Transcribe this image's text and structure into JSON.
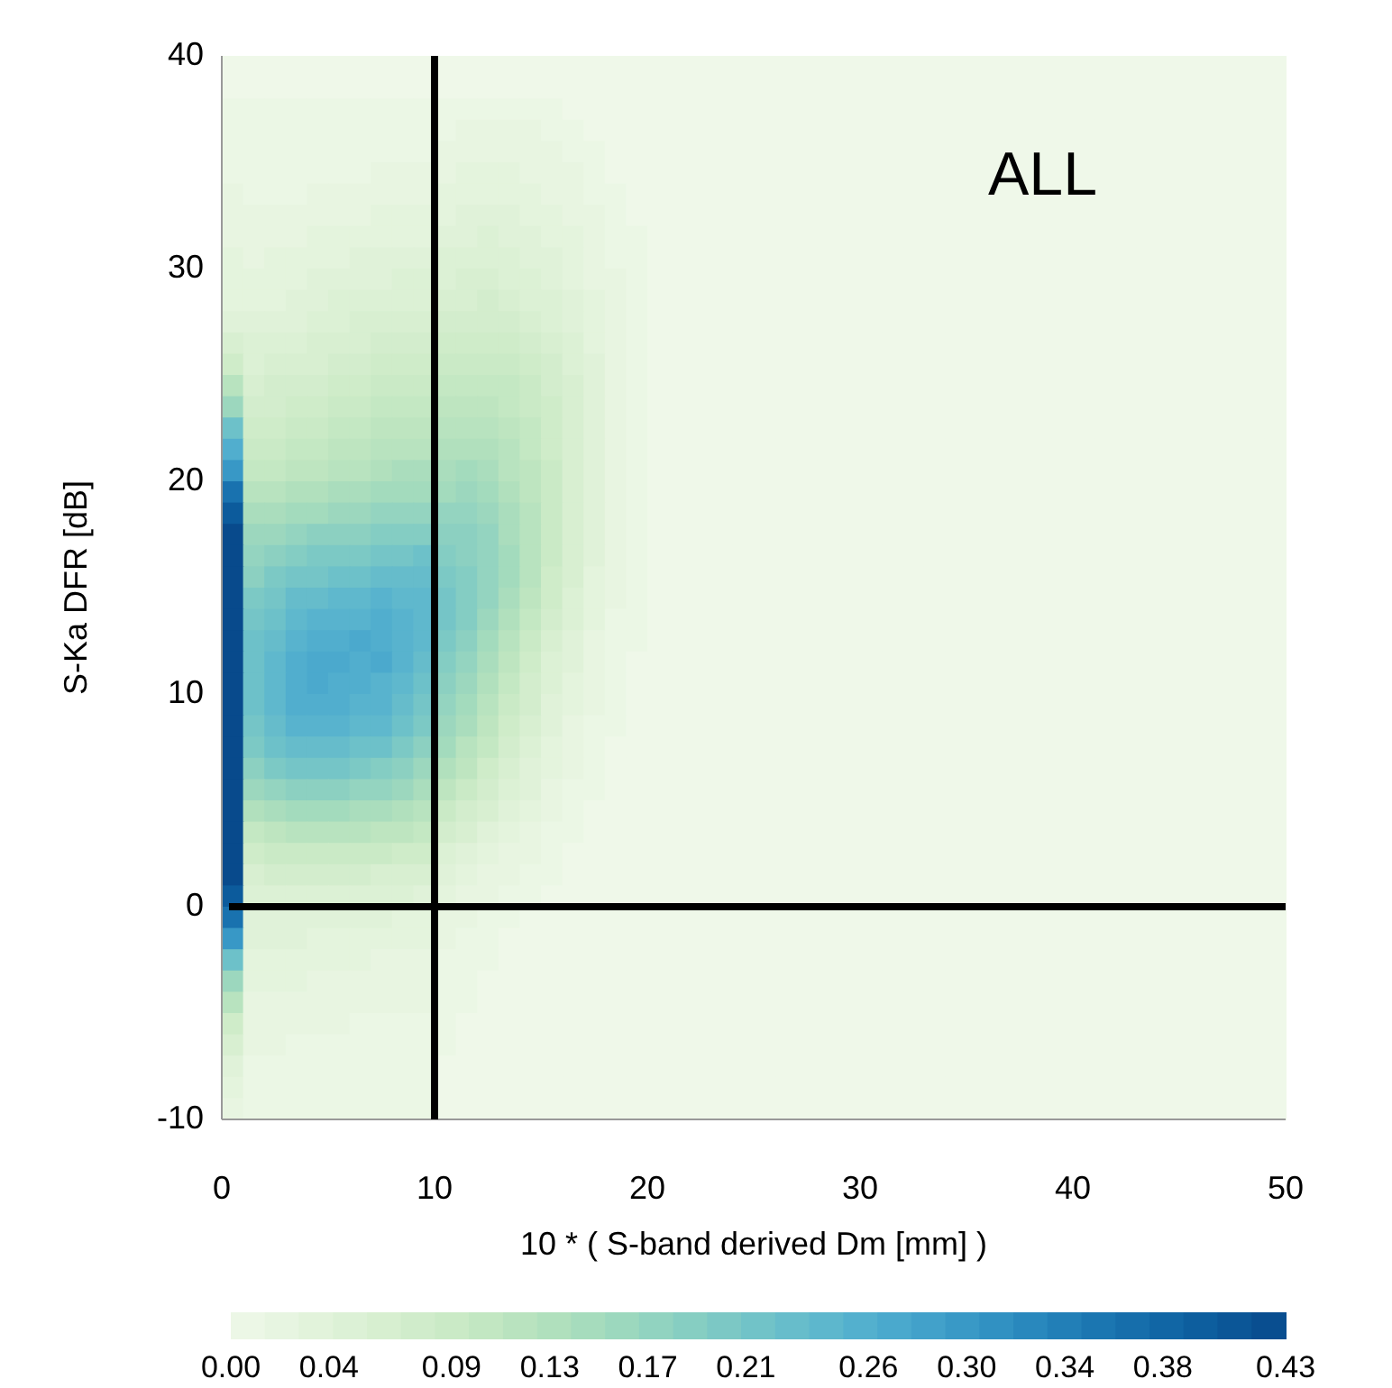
{
  "chart_data": {
    "type": "heatmap",
    "xlabel": "10 * ( S-band derived Dm [mm] )",
    "ylabel": "S-Ka DFR [dB]",
    "annotations": [
      "ALL"
    ],
    "xlim": [
      0,
      50
    ],
    "xticks": [
      0,
      10,
      20,
      30,
      40,
      50
    ],
    "ylim": [
      -10,
      40
    ],
    "yticks": [
      -10,
      0,
      10,
      20,
      30,
      40
    ],
    "clim": [
      0,
      0.43
    ],
    "cticks": [
      {
        "value": 0,
        "label": "0.00"
      },
      {
        "value": 0.04,
        "label": "0.04"
      },
      {
        "value": 0.09,
        "label": "0.09"
      },
      {
        "value": 0.13,
        "label": "0.13"
      },
      {
        "value": 0.17,
        "label": "0.17"
      },
      {
        "value": 0.21,
        "label": "0.21"
      },
      {
        "value": 0.26,
        "label": "0.26"
      },
      {
        "value": 0.3,
        "label": "0.30"
      },
      {
        "value": 0.34,
        "label": "0.34"
      },
      {
        "value": 0.38,
        "label": "0.38"
      },
      {
        "value": 0.43,
        "label": "0.43"
      }
    ],
    "ref_lines": [
      {
        "axis": "x",
        "value": 10,
        "color": "#000000"
      },
      {
        "axis": "y",
        "value": 0,
        "color": "#000000"
      }
    ],
    "x": [
      0.5,
      1.5,
      2.5,
      3.5,
      4.5,
      5.5,
      6.5,
      7.5,
      8.5,
      9.5,
      10.5,
      11.5,
      12.5,
      13.5,
      14.5,
      15.5,
      16.5,
      17.5,
      18.5,
      19.5,
      20.5,
      21.5,
      22.5,
      23.5,
      24.5,
      25.5,
      26.5,
      27.5,
      28.5,
      29.5,
      30.5,
      31.5,
      32.5,
      33.5,
      34.5,
      35.5,
      36.5,
      37.5,
      38.5,
      39.5,
      40.5,
      41.5,
      42.5,
      43.5,
      44.5,
      45.5,
      46.5,
      47.5,
      48.5,
      49.5
    ],
    "y": [
      39.5,
      38.5,
      37.5,
      36.5,
      35.5,
      34.5,
      33.5,
      32.5,
      31.5,
      30.5,
      29.5,
      28.5,
      27.5,
      26.5,
      25.5,
      24.5,
      23.5,
      22.5,
      21.5,
      20.5,
      19.5,
      18.5,
      17.5,
      16.5,
      15.5,
      14.5,
      13.5,
      12.5,
      11.5,
      10.5,
      9.5,
      8.5,
      7.5,
      6.5,
      5.5,
      4.5,
      3.5,
      2.5,
      1.5,
      0.5,
      -0.5,
      -1.5,
      -2.5,
      -3.5,
      -4.5,
      -5.5,
      -6.5,
      -7.5,
      -8.5,
      -9.5
    ],
    "cells": [
      [
        0,
        0,
        0,
        0,
        0,
        0,
        0,
        0,
        0,
        0,
        0,
        0,
        0,
        0,
        0,
        0,
        0,
        0,
        0,
        0,
        0,
        0,
        0,
        0,
        0,
        0,
        0,
        0,
        0,
        0,
        0,
        0,
        0,
        0,
        0,
        0,
        0,
        0,
        0,
        0,
        0,
        0,
        0,
        0,
        0,
        0,
        0,
        0,
        0,
        0
      ],
      [
        0,
        0,
        0,
        0,
        0,
        0,
        0,
        0,
        0,
        0,
        0,
        0,
        0,
        0,
        0,
        0,
        0,
        0,
        0,
        0,
        0,
        0,
        0,
        0,
        0,
        0,
        0,
        0,
        0,
        0,
        0,
        0,
        0,
        0,
        0,
        0,
        0,
        0,
        0,
        0,
        0,
        0,
        0,
        0,
        0,
        0,
        0,
        0,
        0,
        0
      ],
      [
        0.01,
        0.01,
        0.01,
        0.01,
        0.01,
        0.01,
        0.01,
        0.01,
        0.01,
        0.01,
        0.01,
        0.01,
        0.01,
        0.01,
        0.01,
        0.01,
        0,
        0,
        0,
        0,
        0,
        0,
        0,
        0,
        0,
        0,
        0,
        0,
        0,
        0,
        0,
        0,
        0,
        0,
        0,
        0,
        0,
        0,
        0,
        0,
        0,
        0,
        0,
        0,
        0,
        0,
        0,
        0,
        0,
        0
      ],
      [
        0.01,
        0.01,
        0.01,
        0.01,
        0.01,
        0.01,
        0.01,
        0.01,
        0.01,
        0.01,
        0.01,
        0.02,
        0.02,
        0.02,
        0.02,
        0.01,
        0.01,
        0,
        0,
        0,
        0,
        0,
        0,
        0,
        0,
        0,
        0,
        0,
        0,
        0,
        0,
        0,
        0,
        0,
        0,
        0,
        0,
        0,
        0,
        0,
        0,
        0,
        0,
        0,
        0,
        0,
        0,
        0,
        0,
        0
      ],
      [
        0.01,
        0.01,
        0.01,
        0.01,
        0.01,
        0.01,
        0.01,
        0.01,
        0.01,
        0.01,
        0.02,
        0.02,
        0.02,
        0.02,
        0.02,
        0.02,
        0.01,
        0.01,
        0,
        0,
        0,
        0,
        0,
        0,
        0,
        0,
        0,
        0,
        0,
        0,
        0,
        0,
        0,
        0,
        0,
        0,
        0,
        0,
        0,
        0,
        0,
        0,
        0,
        0,
        0,
        0,
        0,
        0,
        0,
        0
      ],
      [
        0.01,
        0.01,
        0.01,
        0.01,
        0.01,
        0.01,
        0.01,
        0.02,
        0.02,
        0.02,
        0.02,
        0.03,
        0.03,
        0.03,
        0.02,
        0.02,
        0.02,
        0.01,
        0,
        0,
        0,
        0,
        0,
        0,
        0,
        0,
        0,
        0,
        0,
        0,
        0,
        0,
        0,
        0,
        0,
        0,
        0,
        0,
        0,
        0,
        0,
        0,
        0,
        0,
        0,
        0,
        0,
        0,
        0,
        0
      ],
      [
        0.02,
        0.01,
        0.01,
        0.01,
        0.02,
        0.02,
        0.02,
        0.02,
        0.02,
        0.02,
        0.03,
        0.03,
        0.03,
        0.03,
        0.03,
        0.02,
        0.02,
        0.01,
        0.01,
        0,
        0,
        0,
        0,
        0,
        0,
        0,
        0,
        0,
        0,
        0,
        0,
        0,
        0,
        0,
        0,
        0,
        0,
        0,
        0,
        0,
        0,
        0,
        0,
        0,
        0,
        0,
        0,
        0,
        0,
        0
      ],
      [
        0.02,
        0.02,
        0.02,
        0.02,
        0.02,
        0.02,
        0.02,
        0.03,
        0.03,
        0.03,
        0.03,
        0.04,
        0.04,
        0.04,
        0.03,
        0.03,
        0.02,
        0.02,
        0.01,
        0,
        0,
        0,
        0,
        0,
        0,
        0,
        0,
        0,
        0,
        0,
        0,
        0,
        0,
        0,
        0,
        0,
        0,
        0,
        0,
        0,
        0,
        0,
        0,
        0,
        0,
        0,
        0,
        0,
        0,
        0
      ],
      [
        0.02,
        0.02,
        0.02,
        0.02,
        0.03,
        0.03,
        0.03,
        0.03,
        0.03,
        0.03,
        0.04,
        0.04,
        0.05,
        0.04,
        0.04,
        0.03,
        0.03,
        0.02,
        0.01,
        0.01,
        0,
        0,
        0,
        0,
        0,
        0,
        0,
        0,
        0,
        0,
        0,
        0,
        0,
        0,
        0,
        0,
        0,
        0,
        0,
        0,
        0,
        0,
        0,
        0,
        0,
        0,
        0,
        0,
        0,
        0
      ],
      [
        0.03,
        0.02,
        0.03,
        0.03,
        0.03,
        0.03,
        0.04,
        0.04,
        0.04,
        0.04,
        0.05,
        0.05,
        0.05,
        0.05,
        0.04,
        0.04,
        0.03,
        0.02,
        0.01,
        0.01,
        0,
        0,
        0,
        0,
        0,
        0,
        0,
        0,
        0,
        0,
        0,
        0,
        0,
        0,
        0,
        0,
        0,
        0,
        0,
        0,
        0,
        0,
        0,
        0,
        0,
        0,
        0,
        0,
        0,
        0
      ],
      [
        0.03,
        0.03,
        0.03,
        0.03,
        0.04,
        0.04,
        0.04,
        0.04,
        0.05,
        0.05,
        0.05,
        0.06,
        0.06,
        0.05,
        0.05,
        0.04,
        0.03,
        0.02,
        0.02,
        0.01,
        0,
        0,
        0,
        0,
        0,
        0,
        0,
        0,
        0,
        0,
        0,
        0,
        0,
        0,
        0,
        0,
        0,
        0,
        0,
        0,
        0,
        0,
        0,
        0,
        0,
        0,
        0,
        0,
        0,
        0
      ],
      [
        0.03,
        0.03,
        0.03,
        0.04,
        0.04,
        0.05,
        0.05,
        0.05,
        0.05,
        0.05,
        0.06,
        0.06,
        0.07,
        0.06,
        0.05,
        0.05,
        0.04,
        0.03,
        0.02,
        0.01,
        0,
        0,
        0,
        0,
        0,
        0,
        0,
        0,
        0,
        0,
        0,
        0,
        0,
        0,
        0,
        0,
        0,
        0,
        0,
        0,
        0,
        0,
        0,
        0,
        0,
        0,
        0,
        0,
        0,
        0
      ],
      [
        0.04,
        0.04,
        0.04,
        0.04,
        0.05,
        0.05,
        0.06,
        0.06,
        0.06,
        0.06,
        0.07,
        0.07,
        0.07,
        0.07,
        0.06,
        0.05,
        0.04,
        0.03,
        0.02,
        0.01,
        0,
        0,
        0,
        0,
        0,
        0,
        0,
        0,
        0,
        0,
        0,
        0,
        0,
        0,
        0,
        0,
        0,
        0,
        0,
        0,
        0,
        0,
        0,
        0,
        0,
        0,
        0,
        0,
        0,
        0
      ],
      [
        0.06,
        0.05,
        0.05,
        0.05,
        0.06,
        0.06,
        0.06,
        0.07,
        0.07,
        0.07,
        0.08,
        0.08,
        0.08,
        0.08,
        0.07,
        0.06,
        0.05,
        0.03,
        0.02,
        0.01,
        0,
        0,
        0,
        0,
        0,
        0,
        0,
        0,
        0,
        0,
        0,
        0,
        0,
        0,
        0,
        0,
        0,
        0,
        0,
        0,
        0,
        0,
        0,
        0,
        0,
        0,
        0,
        0,
        0,
        0
      ],
      [
        0.08,
        0.05,
        0.06,
        0.06,
        0.06,
        0.07,
        0.07,
        0.08,
        0.08,
        0.08,
        0.09,
        0.09,
        0.09,
        0.09,
        0.08,
        0.07,
        0.05,
        0.04,
        0.02,
        0.01,
        0,
        0,
        0,
        0,
        0,
        0,
        0,
        0,
        0,
        0,
        0,
        0,
        0,
        0,
        0,
        0,
        0,
        0,
        0,
        0,
        0,
        0,
        0,
        0,
        0,
        0,
        0,
        0,
        0,
        0
      ],
      [
        0.12,
        0.06,
        0.07,
        0.07,
        0.07,
        0.08,
        0.08,
        0.09,
        0.09,
        0.09,
        0.1,
        0.1,
        0.1,
        0.1,
        0.09,
        0.07,
        0.06,
        0.04,
        0.02,
        0.01,
        0,
        0,
        0,
        0,
        0,
        0,
        0,
        0,
        0,
        0,
        0,
        0,
        0,
        0,
        0,
        0,
        0,
        0,
        0,
        0,
        0,
        0,
        0,
        0,
        0,
        0,
        0,
        0,
        0,
        0
      ],
      [
        0.16,
        0.07,
        0.07,
        0.08,
        0.08,
        0.09,
        0.09,
        0.1,
        0.1,
        0.1,
        0.11,
        0.11,
        0.11,
        0.1,
        0.09,
        0.08,
        0.06,
        0.04,
        0.02,
        0.01,
        0,
        0,
        0,
        0,
        0,
        0,
        0,
        0,
        0,
        0,
        0,
        0,
        0,
        0,
        0,
        0,
        0,
        0,
        0,
        0,
        0,
        0,
        0,
        0,
        0,
        0,
        0,
        0,
        0,
        0
      ],
      [
        0.22,
        0.08,
        0.08,
        0.09,
        0.09,
        0.1,
        0.1,
        0.11,
        0.11,
        0.11,
        0.12,
        0.12,
        0.12,
        0.11,
        0.1,
        0.08,
        0.06,
        0.04,
        0.02,
        0.01,
        0,
        0,
        0,
        0,
        0,
        0,
        0,
        0,
        0,
        0,
        0,
        0,
        0,
        0,
        0,
        0,
        0,
        0,
        0,
        0,
        0,
        0,
        0,
        0,
        0,
        0,
        0,
        0,
        0,
        0
      ],
      [
        0.26,
        0.09,
        0.09,
        0.1,
        0.1,
        0.11,
        0.11,
        0.12,
        0.12,
        0.12,
        0.13,
        0.13,
        0.13,
        0.12,
        0.1,
        0.08,
        0.06,
        0.04,
        0.02,
        0.01,
        0,
        0,
        0,
        0,
        0,
        0,
        0,
        0,
        0,
        0,
        0,
        0,
        0,
        0,
        0,
        0,
        0,
        0,
        0,
        0,
        0,
        0,
        0,
        0,
        0,
        0,
        0,
        0,
        0,
        0
      ],
      [
        0.3,
        0.1,
        0.1,
        0.11,
        0.11,
        0.12,
        0.12,
        0.13,
        0.14,
        0.14,
        0.14,
        0.15,
        0.14,
        0.12,
        0.11,
        0.09,
        0.06,
        0.04,
        0.02,
        0.01,
        0,
        0,
        0,
        0,
        0,
        0,
        0,
        0,
        0,
        0,
        0,
        0,
        0,
        0,
        0,
        0,
        0,
        0,
        0,
        0,
        0,
        0,
        0,
        0,
        0,
        0,
        0,
        0,
        0,
        0
      ],
      [
        0.36,
        0.12,
        0.12,
        0.13,
        0.13,
        0.14,
        0.14,
        0.15,
        0.15,
        0.15,
        0.15,
        0.16,
        0.15,
        0.13,
        0.11,
        0.09,
        0.06,
        0.04,
        0.02,
        0.01,
        0,
        0,
        0,
        0,
        0,
        0,
        0,
        0,
        0,
        0,
        0,
        0,
        0,
        0,
        0,
        0,
        0,
        0,
        0,
        0,
        0,
        0,
        0,
        0,
        0,
        0,
        0,
        0,
        0,
        0
      ],
      [
        0.4,
        0.14,
        0.14,
        0.15,
        0.15,
        0.16,
        0.16,
        0.17,
        0.17,
        0.17,
        0.17,
        0.17,
        0.16,
        0.14,
        0.12,
        0.09,
        0.06,
        0.04,
        0.02,
        0.01,
        0,
        0,
        0,
        0,
        0,
        0,
        0,
        0,
        0,
        0,
        0,
        0,
        0,
        0,
        0,
        0,
        0,
        0,
        0,
        0,
        0,
        0,
        0,
        0,
        0,
        0,
        0,
        0,
        0,
        0
      ],
      [
        0.43,
        0.16,
        0.16,
        0.17,
        0.18,
        0.18,
        0.18,
        0.19,
        0.19,
        0.19,
        0.18,
        0.18,
        0.17,
        0.14,
        0.12,
        0.09,
        0.06,
        0.04,
        0.02,
        0.01,
        0,
        0,
        0,
        0,
        0,
        0,
        0,
        0,
        0,
        0,
        0,
        0,
        0,
        0,
        0,
        0,
        0,
        0,
        0,
        0,
        0,
        0,
        0,
        0,
        0,
        0,
        0,
        0,
        0,
        0
      ],
      [
        0.43,
        0.17,
        0.18,
        0.19,
        0.2,
        0.2,
        0.2,
        0.21,
        0.21,
        0.22,
        0.19,
        0.18,
        0.17,
        0.15,
        0.12,
        0.09,
        0.06,
        0.04,
        0.02,
        0.01,
        0,
        0,
        0,
        0,
        0,
        0,
        0,
        0,
        0,
        0,
        0,
        0,
        0,
        0,
        0,
        0,
        0,
        0,
        0,
        0,
        0,
        0,
        0,
        0,
        0,
        0,
        0,
        0,
        0,
        0
      ],
      [
        0.43,
        0.18,
        0.2,
        0.21,
        0.21,
        0.22,
        0.22,
        0.23,
        0.23,
        0.23,
        0.2,
        0.19,
        0.17,
        0.15,
        0.12,
        0.08,
        0.06,
        0.03,
        0.02,
        0.01,
        0,
        0,
        0,
        0,
        0,
        0,
        0,
        0,
        0,
        0,
        0,
        0,
        0,
        0,
        0,
        0,
        0,
        0,
        0,
        0,
        0,
        0,
        0,
        0,
        0,
        0,
        0,
        0,
        0,
        0
      ],
      [
        0.43,
        0.2,
        0.21,
        0.23,
        0.23,
        0.24,
        0.24,
        0.25,
        0.24,
        0.24,
        0.21,
        0.19,
        0.17,
        0.14,
        0.11,
        0.08,
        0.05,
        0.03,
        0.02,
        0.01,
        0,
        0,
        0,
        0,
        0,
        0,
        0,
        0,
        0,
        0,
        0,
        0,
        0,
        0,
        0,
        0,
        0,
        0,
        0,
        0,
        0,
        0,
        0,
        0,
        0,
        0,
        0,
        0,
        0,
        0
      ],
      [
        0.43,
        0.21,
        0.22,
        0.24,
        0.25,
        0.25,
        0.25,
        0.26,
        0.25,
        0.24,
        0.21,
        0.19,
        0.16,
        0.13,
        0.1,
        0.07,
        0.05,
        0.03,
        0.01,
        0.01,
        0,
        0,
        0,
        0,
        0,
        0,
        0,
        0,
        0,
        0,
        0,
        0,
        0,
        0,
        0,
        0,
        0,
        0,
        0,
        0,
        0,
        0,
        0,
        0,
        0,
        0,
        0,
        0,
        0,
        0
      ],
      [
        0.43,
        0.22,
        0.23,
        0.25,
        0.26,
        0.26,
        0.27,
        0.26,
        0.25,
        0.24,
        0.2,
        0.18,
        0.15,
        0.12,
        0.09,
        0.06,
        0.04,
        0.02,
        0.01,
        0.01,
        0,
        0,
        0,
        0,
        0,
        0,
        0,
        0,
        0,
        0,
        0,
        0,
        0,
        0,
        0,
        0,
        0,
        0,
        0,
        0,
        0,
        0,
        0,
        0,
        0,
        0,
        0,
        0,
        0,
        0
      ],
      [
        0.43,
        0.22,
        0.24,
        0.26,
        0.27,
        0.27,
        0.26,
        0.27,
        0.25,
        0.23,
        0.19,
        0.17,
        0.14,
        0.11,
        0.08,
        0.05,
        0.04,
        0.02,
        0.01,
        0,
        0,
        0,
        0,
        0,
        0,
        0,
        0,
        0,
        0,
        0,
        0,
        0,
        0,
        0,
        0,
        0,
        0,
        0,
        0,
        0,
        0,
        0,
        0,
        0,
        0,
        0,
        0,
        0,
        0,
        0
      ],
      [
        0.43,
        0.22,
        0.24,
        0.26,
        0.27,
        0.26,
        0.26,
        0.25,
        0.24,
        0.22,
        0.18,
        0.16,
        0.13,
        0.1,
        0.07,
        0.05,
        0.03,
        0.02,
        0.01,
        0,
        0,
        0,
        0,
        0,
        0,
        0,
        0,
        0,
        0,
        0,
        0,
        0,
        0,
        0,
        0,
        0,
        0,
        0,
        0,
        0,
        0,
        0,
        0,
        0,
        0,
        0,
        0,
        0,
        0,
        0
      ],
      [
        0.43,
        0.22,
        0.24,
        0.26,
        0.26,
        0.26,
        0.25,
        0.25,
        0.23,
        0.21,
        0.17,
        0.15,
        0.12,
        0.09,
        0.07,
        0.04,
        0.03,
        0.02,
        0.01,
        0,
        0,
        0,
        0,
        0,
        0,
        0,
        0,
        0,
        0,
        0,
        0,
        0,
        0,
        0,
        0,
        0,
        0,
        0,
        0,
        0,
        0,
        0,
        0,
        0,
        0,
        0,
        0,
        0,
        0,
        0
      ],
      [
        0.43,
        0.21,
        0.23,
        0.25,
        0.25,
        0.25,
        0.24,
        0.24,
        0.22,
        0.2,
        0.16,
        0.14,
        0.11,
        0.08,
        0.06,
        0.04,
        0.02,
        0.01,
        0.01,
        0,
        0,
        0,
        0,
        0,
        0,
        0,
        0,
        0,
        0,
        0,
        0,
        0,
        0,
        0,
        0,
        0,
        0,
        0,
        0,
        0,
        0,
        0,
        0,
        0,
        0,
        0,
        0,
        0,
        0,
        0
      ],
      [
        0.43,
        0.2,
        0.22,
        0.23,
        0.23,
        0.23,
        0.22,
        0.22,
        0.2,
        0.18,
        0.15,
        0.12,
        0.1,
        0.07,
        0.05,
        0.03,
        0.02,
        0.01,
        0,
        0,
        0,
        0,
        0,
        0,
        0,
        0,
        0,
        0,
        0,
        0,
        0,
        0,
        0,
        0,
        0,
        0,
        0,
        0,
        0,
        0,
        0,
        0,
        0,
        0,
        0,
        0,
        0,
        0,
        0,
        0
      ],
      [
        0.43,
        0.18,
        0.2,
        0.21,
        0.21,
        0.21,
        0.2,
        0.19,
        0.18,
        0.16,
        0.13,
        0.11,
        0.08,
        0.06,
        0.04,
        0.03,
        0.02,
        0.01,
        0,
        0,
        0,
        0,
        0,
        0,
        0,
        0,
        0,
        0,
        0,
        0,
        0,
        0,
        0,
        0,
        0,
        0,
        0,
        0,
        0,
        0,
        0,
        0,
        0,
        0,
        0,
        0,
        0,
        0,
        0,
        0
      ],
      [
        0.43,
        0.16,
        0.17,
        0.18,
        0.18,
        0.18,
        0.17,
        0.17,
        0.16,
        0.14,
        0.11,
        0.09,
        0.07,
        0.05,
        0.04,
        0.02,
        0.01,
        0.01,
        0,
        0,
        0,
        0,
        0,
        0,
        0,
        0,
        0,
        0,
        0,
        0,
        0,
        0,
        0,
        0,
        0,
        0,
        0,
        0,
        0,
        0,
        0,
        0,
        0,
        0,
        0,
        0,
        0,
        0,
        0,
        0
      ],
      [
        0.43,
        0.13,
        0.14,
        0.15,
        0.15,
        0.15,
        0.14,
        0.14,
        0.13,
        0.12,
        0.09,
        0.07,
        0.06,
        0.04,
        0.03,
        0.02,
        0.01,
        0,
        0,
        0,
        0,
        0,
        0,
        0,
        0,
        0,
        0,
        0,
        0,
        0,
        0,
        0,
        0,
        0,
        0,
        0,
        0,
        0,
        0,
        0,
        0,
        0,
        0,
        0,
        0,
        0,
        0,
        0,
        0,
        0
      ],
      [
        0.43,
        0.1,
        0.11,
        0.12,
        0.12,
        0.12,
        0.12,
        0.11,
        0.11,
        0.1,
        0.07,
        0.06,
        0.04,
        0.03,
        0.02,
        0.01,
        0.01,
        0,
        0,
        0,
        0,
        0,
        0,
        0,
        0,
        0,
        0,
        0,
        0,
        0,
        0,
        0,
        0,
        0,
        0,
        0,
        0,
        0,
        0,
        0,
        0,
        0,
        0,
        0,
        0,
        0,
        0,
        0,
        0,
        0
      ],
      [
        0.43,
        0.08,
        0.09,
        0.09,
        0.09,
        0.09,
        0.09,
        0.09,
        0.08,
        0.08,
        0.05,
        0.04,
        0.03,
        0.02,
        0.02,
        0.01,
        0,
        0,
        0,
        0,
        0,
        0,
        0,
        0,
        0,
        0,
        0,
        0,
        0,
        0,
        0,
        0,
        0,
        0,
        0,
        0,
        0,
        0,
        0,
        0,
        0,
        0,
        0,
        0,
        0,
        0,
        0,
        0,
        0,
        0
      ],
      [
        0.43,
        0.06,
        0.07,
        0.07,
        0.07,
        0.07,
        0.07,
        0.06,
        0.06,
        0.06,
        0.04,
        0.03,
        0.02,
        0.02,
        0.01,
        0.01,
        0,
        0,
        0,
        0,
        0,
        0,
        0,
        0,
        0,
        0,
        0,
        0,
        0,
        0,
        0,
        0,
        0,
        0,
        0,
        0,
        0,
        0,
        0,
        0,
        0,
        0,
        0,
        0,
        0,
        0,
        0,
        0,
        0,
        0
      ],
      [
        0.4,
        0.05,
        0.05,
        0.05,
        0.05,
        0.05,
        0.05,
        0.05,
        0.05,
        0.04,
        0.03,
        0.02,
        0.02,
        0.01,
        0.01,
        0,
        0,
        0,
        0,
        0,
        0,
        0,
        0,
        0,
        0,
        0,
        0,
        0,
        0,
        0,
        0,
        0,
        0,
        0,
        0,
        0,
        0,
        0,
        0,
        0,
        0,
        0,
        0,
        0,
        0,
        0,
        0,
        0,
        0,
        0
      ],
      [
        0.36,
        0.04,
        0.04,
        0.04,
        0.04,
        0.04,
        0.04,
        0.04,
        0.03,
        0.03,
        0.02,
        0.02,
        0.01,
        0.01,
        0,
        0,
        0,
        0,
        0,
        0,
        0,
        0,
        0,
        0,
        0,
        0,
        0,
        0,
        0,
        0,
        0,
        0,
        0,
        0,
        0,
        0,
        0,
        0,
        0,
        0,
        0,
        0,
        0,
        0,
        0,
        0,
        0,
        0,
        0,
        0
      ],
      [
        0.3,
        0.04,
        0.04,
        0.04,
        0.03,
        0.03,
        0.03,
        0.03,
        0.03,
        0.03,
        0.02,
        0.01,
        0.01,
        0,
        0,
        0,
        0,
        0,
        0,
        0,
        0,
        0,
        0,
        0,
        0,
        0,
        0,
        0,
        0,
        0,
        0,
        0,
        0,
        0,
        0,
        0,
        0,
        0,
        0,
        0,
        0,
        0,
        0,
        0,
        0,
        0,
        0,
        0,
        0,
        0
      ],
      [
        0.22,
        0.03,
        0.03,
        0.03,
        0.03,
        0.03,
        0.03,
        0.02,
        0.02,
        0.02,
        0.01,
        0.01,
        0.01,
        0,
        0,
        0,
        0,
        0,
        0,
        0,
        0,
        0,
        0,
        0,
        0,
        0,
        0,
        0,
        0,
        0,
        0,
        0,
        0,
        0,
        0,
        0,
        0,
        0,
        0,
        0,
        0,
        0,
        0,
        0,
        0,
        0,
        0,
        0,
        0,
        0
      ],
      [
        0.16,
        0.03,
        0.03,
        0.03,
        0.02,
        0.02,
        0.02,
        0.02,
        0.02,
        0.02,
        0.01,
        0.01,
        0,
        0,
        0,
        0,
        0,
        0,
        0,
        0,
        0,
        0,
        0,
        0,
        0,
        0,
        0,
        0,
        0,
        0,
        0,
        0,
        0,
        0,
        0,
        0,
        0,
        0,
        0,
        0,
        0,
        0,
        0,
        0,
        0,
        0,
        0,
        0,
        0,
        0
      ],
      [
        0.12,
        0.02,
        0.02,
        0.02,
        0.02,
        0.02,
        0.02,
        0.02,
        0.02,
        0.02,
        0.01,
        0.01,
        0,
        0,
        0,
        0,
        0,
        0,
        0,
        0,
        0,
        0,
        0,
        0,
        0,
        0,
        0,
        0,
        0,
        0,
        0,
        0,
        0,
        0,
        0,
        0,
        0,
        0,
        0,
        0,
        0,
        0,
        0,
        0,
        0,
        0,
        0,
        0,
        0,
        0
      ],
      [
        0.08,
        0.02,
        0.02,
        0.02,
        0.02,
        0.02,
        0.01,
        0.01,
        0.01,
        0.01,
        0.01,
        0,
        0,
        0,
        0,
        0,
        0,
        0,
        0,
        0,
        0,
        0,
        0,
        0,
        0,
        0,
        0,
        0,
        0,
        0,
        0,
        0,
        0,
        0,
        0,
        0,
        0,
        0,
        0,
        0,
        0,
        0,
        0,
        0,
        0,
        0,
        0,
        0,
        0,
        0
      ],
      [
        0.06,
        0.02,
        0.02,
        0.01,
        0.01,
        0.01,
        0.01,
        0.01,
        0.01,
        0.01,
        0.01,
        0,
        0,
        0,
        0,
        0,
        0,
        0,
        0,
        0,
        0,
        0,
        0,
        0,
        0,
        0,
        0,
        0,
        0,
        0,
        0,
        0,
        0,
        0,
        0,
        0,
        0,
        0,
        0,
        0,
        0,
        0,
        0,
        0,
        0,
        0,
        0,
        0,
        0,
        0
      ],
      [
        0.04,
        0.01,
        0.01,
        0.01,
        0.01,
        0.01,
        0.01,
        0.01,
        0.01,
        0.01,
        0,
        0,
        0,
        0,
        0,
        0,
        0,
        0,
        0,
        0,
        0,
        0,
        0,
        0,
        0,
        0,
        0,
        0,
        0,
        0,
        0,
        0,
        0,
        0,
        0,
        0,
        0,
        0,
        0,
        0,
        0,
        0,
        0,
        0,
        0,
        0,
        0,
        0,
        0,
        0
      ],
      [
        0.03,
        0.01,
        0.01,
        0.01,
        0.01,
        0.01,
        0.01,
        0.01,
        0.01,
        0.01,
        0,
        0,
        0,
        0,
        0,
        0,
        0,
        0,
        0,
        0,
        0,
        0,
        0,
        0,
        0,
        0,
        0,
        0,
        0,
        0,
        0,
        0,
        0,
        0,
        0,
        0,
        0,
        0,
        0,
        0,
        0,
        0,
        0,
        0,
        0,
        0,
        0,
        0,
        0,
        0
      ],
      [
        0.02,
        0.01,
        0.01,
        0.01,
        0.01,
        0.01,
        0.01,
        0.01,
        0.01,
        0.01,
        0,
        0,
        0,
        0,
        0,
        0,
        0,
        0,
        0,
        0,
        0,
        0,
        0,
        0,
        0,
        0,
        0,
        0,
        0,
        0,
        0,
        0,
        0,
        0,
        0,
        0,
        0,
        0,
        0,
        0,
        0,
        0,
        0,
        0,
        0,
        0,
        0,
        0,
        0,
        0
      ]
    ]
  }
}
